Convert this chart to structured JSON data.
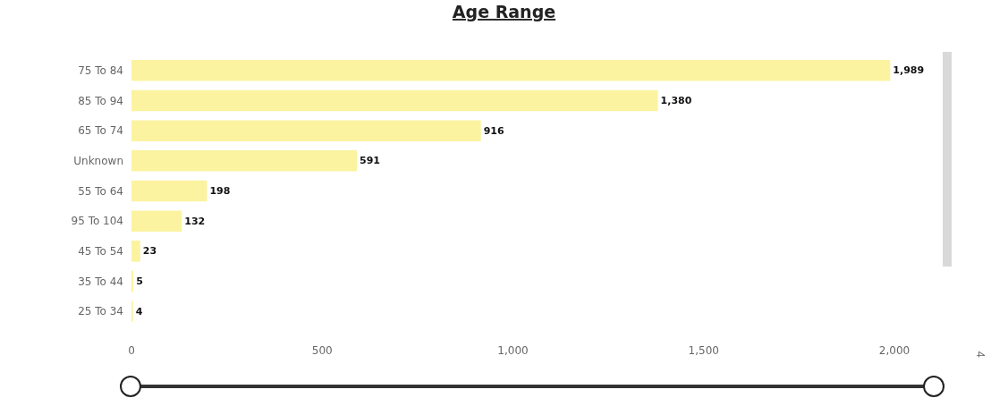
{
  "chart_data": {
    "type": "bar",
    "orientation": "horizontal",
    "title": "Age Range",
    "categories": [
      "75 To 84",
      "85 To 94",
      "65 To 74",
      "Unknown",
      "55 To 64",
      "95 To 104",
      "45 To 54",
      "35 To 44",
      "25 To 34"
    ],
    "values": [
      1989,
      1380,
      916,
      591,
      198,
      132,
      23,
      5,
      4
    ],
    "value_labels": [
      "1,989",
      "1,380",
      "916",
      "591",
      "198",
      "132",
      "23",
      "5",
      "4"
    ],
    "color": "#fbf3a0",
    "xlim": [
      0,
      2000
    ],
    "xticks": [
      0,
      500,
      {
        "value": 1000,
        "label": "1,000"
      },
      {
        "value": 1500,
        "label": "1,500"
      },
      {
        "value": 2000,
        "label": "2,000"
      }
    ],
    "grid": false,
    "annotations": [
      "4"
    ]
  }
}
